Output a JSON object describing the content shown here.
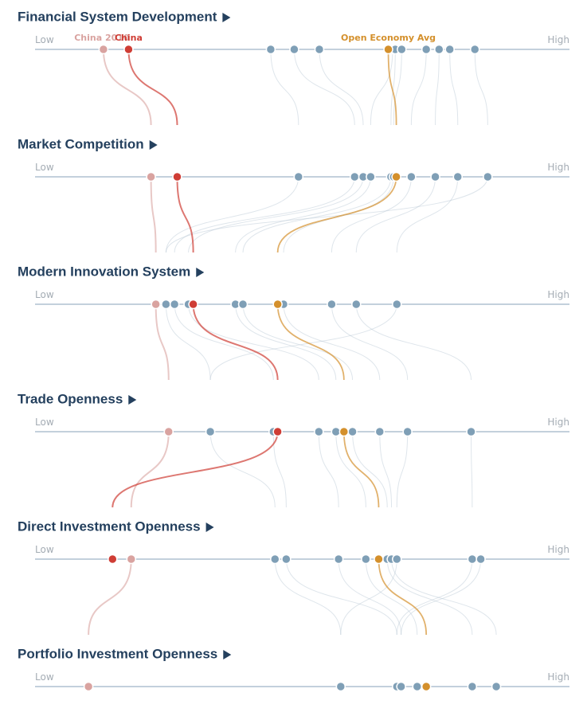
{
  "colors": {
    "title": "#24405e",
    "axis": "#9fb4c6",
    "other_country": "#7f9fb6",
    "china": "#cf3d35",
    "china_2010": "#d9a3a0",
    "open_economy_avg": "#d4902c",
    "low_high_text": "#a4acb4"
  },
  "chart_data": {
    "type": "scatter",
    "description_scale": "relative position from Low to High on each dimension (0 = Low, 1 = High)",
    "axis_labels": {
      "low": "Low",
      "high": "High"
    },
    "callouts": {
      "china_2010": "China 2010",
      "china": "China",
      "open_economy_avg": "Open Economy Avg"
    },
    "dimensions": [
      {
        "title": "Financial System Development",
        "china_2010": 0.128,
        "china": 0.175,
        "open_economy_avg": 0.661,
        "others": [
          0.441,
          0.485,
          0.532,
          0.669,
          0.674,
          0.686,
          0.732,
          0.756,
          0.776,
          0.823
        ]
      },
      {
        "title": "Market Competition",
        "china_2010": 0.217,
        "china": 0.266,
        "open_economy_avg": 0.676,
        "others": [
          0.493,
          0.598,
          0.614,
          0.628,
          0.666,
          0.671,
          0.704,
          0.749,
          0.791,
          0.847
        ]
      },
      {
        "title": "Modern Innovation System",
        "china_2010": 0.226,
        "china": 0.296,
        "open_economy_avg": 0.454,
        "others": [
          0.245,
          0.261,
          0.287,
          0.375,
          0.389,
          0.465,
          0.555,
          0.601,
          0.677
        ]
      },
      {
        "title": "Trade Openness",
        "china_2010": 0.25,
        "china": 0.454,
        "open_economy_avg": 0.578,
        "others": [
          0.328,
          0.446,
          0.531,
          0.563,
          0.594,
          0.645,
          0.697,
          0.816
        ]
      },
      {
        "title": "Direct Investment Openness",
        "china_2010": 0.18,
        "china": 0.145,
        "open_economy_avg": 0.643,
        "others": [
          0.449,
          0.47,
          0.568,
          0.619,
          0.659,
          0.667,
          0.677,
          0.818,
          0.834
        ]
      },
      {
        "title": "Portfolio Investment Openness",
        "china_2010": 0.1,
        "china": null,
        "open_economy_avg": 0.732,
        "others": [
          0.572,
          0.677,
          0.685,
          0.715,
          0.818,
          0.863
        ]
      }
    ]
  }
}
